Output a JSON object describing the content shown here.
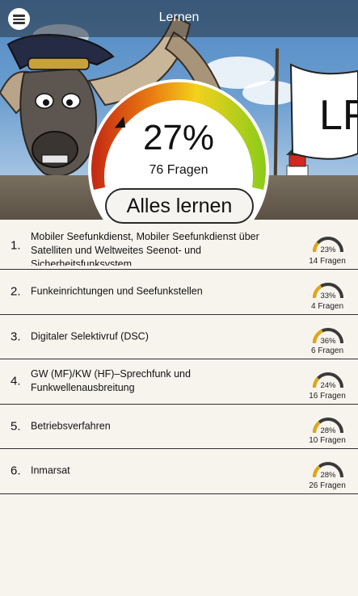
{
  "header": {
    "title": "Lernen",
    "menu_icon": "hamburger-icon"
  },
  "summary": {
    "percent": "27%",
    "questions": "76 Fragen",
    "progress": 0.27
  },
  "learn_all_label": "Alles lernen",
  "flag_text": "LF",
  "topics": [
    {
      "num": "1.",
      "title": "Mobiler Seefunkdienst, Mobiler Seefunkdienst über Satelliten und Weltweites Seenot- und Sicherheitsfunksystem",
      "percent": "23%",
      "progress": 0.23,
      "count": "14 Fragen"
    },
    {
      "num": "2.",
      "title": "Funkeinrichtungen und Seefunkstellen",
      "percent": "33%",
      "progress": 0.33,
      "count": "4 Fragen"
    },
    {
      "num": "3.",
      "title": "Digitaler Selektivruf (DSC)",
      "percent": "36%",
      "progress": 0.36,
      "count": "6 Fragen"
    },
    {
      "num": "4.",
      "title": "GW (MF)/KW (HF)–Sprechfunk und Funkwellenausbreitung",
      "percent": "24%",
      "progress": 0.24,
      "count": "16 Fragen"
    },
    {
      "num": "5.",
      "title": "Betriebsverfahren",
      "percent": "28%",
      "progress": 0.28,
      "count": "10 Fragen"
    },
    {
      "num": "6.",
      "title": "Inmarsat",
      "percent": "28%",
      "progress": 0.28,
      "count": "26 Fragen"
    }
  ],
  "colors": {
    "accent_dark": "#333333",
    "gauge_start": "#cc2a12",
    "gauge_mid": "#f2d21a",
    "gauge_end": "#8fcf1c",
    "mini_fill": "#e2a615"
  }
}
